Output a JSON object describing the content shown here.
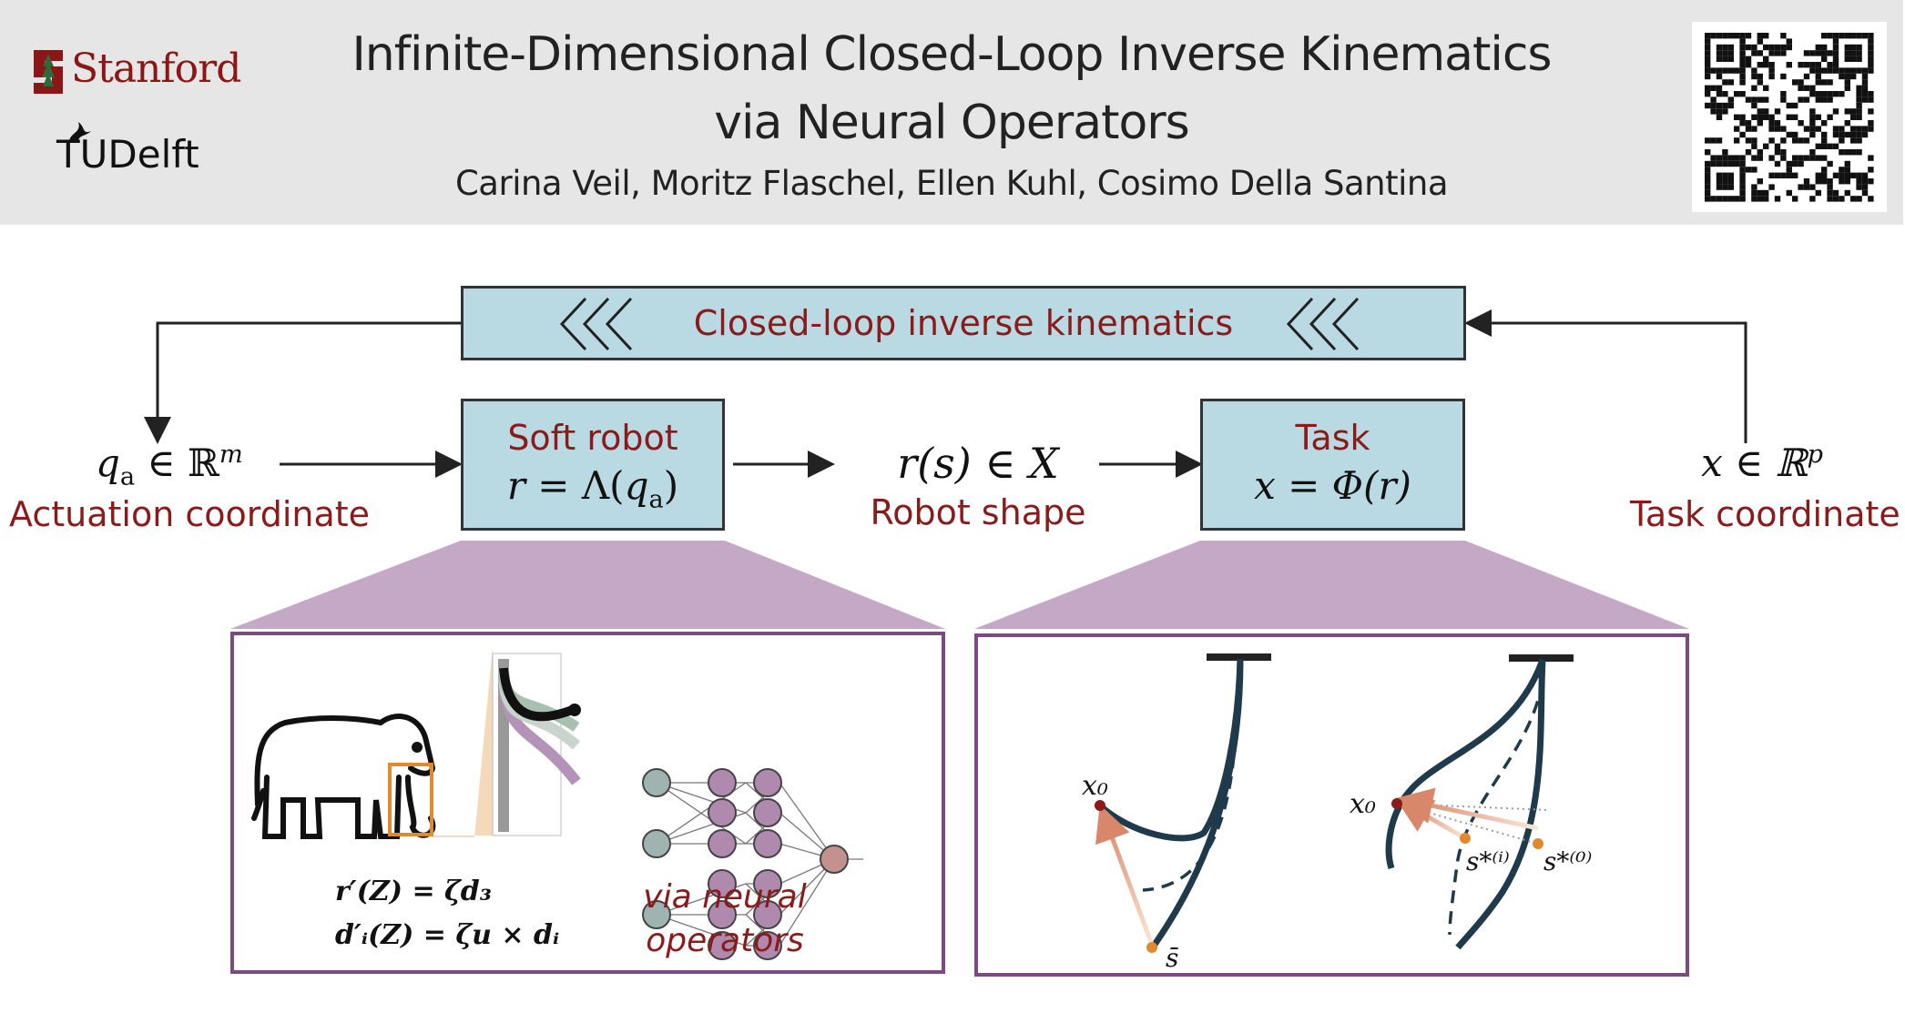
{
  "header": {
    "title_line1": "Infinite-Dimensional Closed-Loop Inverse Kinematics",
    "title_line2": "via Neural Operators",
    "authors": "Carina Veil, Moritz Flaschel, Ellen Kuhl, Cosimo Della Santina",
    "logos": {
      "stanford": "Stanford",
      "tudelft_tu": "TU",
      "tudelft_delft": "Delft"
    },
    "qr_code": "qr-code"
  },
  "diagram": {
    "loop_label": "Closed-loop inverse kinematics",
    "soft_robot": {
      "title": "Soft robot",
      "eq_lhs": "r",
      "eq_mid": " = Λ(",
      "eq_q": "q",
      "eq_sub": "a",
      "eq_end": ")"
    },
    "task": {
      "title": "Task",
      "eq": "x = Φ(r)"
    },
    "actuation": {
      "sym": "q",
      "sub": "a",
      "rel": " ∈ ℝ",
      "sup": "m",
      "label": "Actuation coordinate"
    },
    "shape": {
      "eq": "r(s) ∈ X",
      "label": "Robot shape"
    },
    "task_coord": {
      "sym": "x ∈ ℝ",
      "sup": "p",
      "label": "Task coordinate"
    },
    "left_panel": {
      "eq1": "r′(Z) = ζd₃",
      "eq2": "d′ᵢ(Z) = ζu × dᵢ",
      "note_line1": "via neural",
      "note_line2": "operators"
    },
    "right_panel": {
      "x0_left": "x₀",
      "sbar": "s̄",
      "x0_right": "x₀",
      "s_i": "s*⁽ⁱ⁾",
      "s_0": "s*⁽⁰⁾"
    }
  },
  "colors": {
    "accent_red": "#8b1a1a",
    "box_fill": "#b9d9e3",
    "panel_border": "#7b4a80",
    "funnel": "#c5a8c5",
    "robot": "#1f3a4a",
    "orange": "#e08a2e"
  }
}
